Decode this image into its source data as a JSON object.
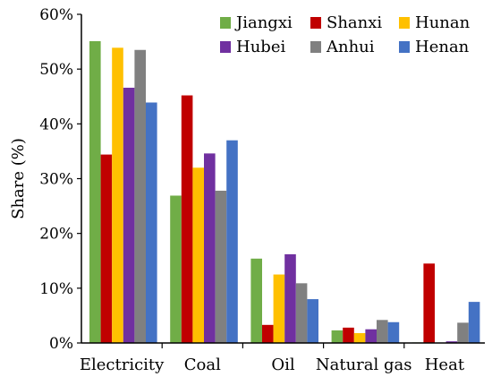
{
  "chart_data": {
    "type": "bar",
    "title": "",
    "xlabel": "",
    "ylabel": "Share (%)",
    "ylim": [
      0,
      60
    ],
    "yticks": [
      "0%",
      "10%",
      "20%",
      "30%",
      "40%",
      "50%",
      "60%"
    ],
    "categories": [
      "Electricity",
      "Coal",
      "Oil",
      "Natural gas",
      "Heat"
    ],
    "legend_position": "top-right",
    "series": [
      {
        "name": "Jiangxi",
        "color": "#70ad47",
        "values": [
          55.1,
          26.9,
          15.4,
          2.3,
          0.1
        ]
      },
      {
        "name": "Shanxi",
        "color": "#c00000",
        "values": [
          34.4,
          45.2,
          3.3,
          2.8,
          14.5
        ]
      },
      {
        "name": "Hunan",
        "color": "#ffc000",
        "values": [
          53.9,
          32.0,
          12.5,
          1.8,
          0.0
        ]
      },
      {
        "name": "Hubei",
        "color": "#7030a0",
        "values": [
          46.6,
          34.6,
          16.2,
          2.5,
          0.3
        ]
      },
      {
        "name": "Anhui",
        "color": "#808080",
        "values": [
          53.5,
          27.8,
          10.9,
          4.2,
          3.7
        ]
      },
      {
        "name": "Henan",
        "color": "#4472c4",
        "values": [
          43.9,
          37.0,
          8.0,
          3.8,
          7.5
        ]
      }
    ]
  }
}
